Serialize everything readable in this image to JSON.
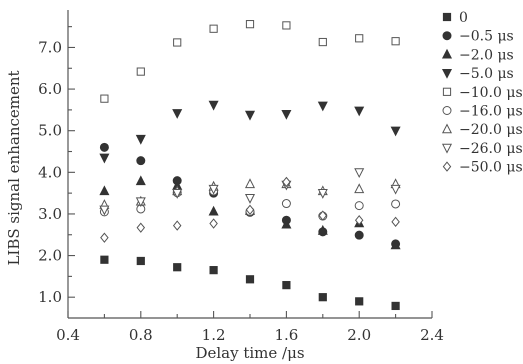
{
  "chart_data": {
    "type": "scatter",
    "title": "",
    "xlabel": "Delay time /μs",
    "ylabel": "LIBS signal enhancement",
    "xlim": [
      0.4,
      2.4
    ],
    "ylim": [
      0.5,
      7.9
    ],
    "xticks": [
      0.4,
      0.8,
      1.2,
      1.6,
      2.0,
      2.4
    ],
    "xtick_labels": [
      "0.4",
      "0.8",
      "1.2",
      "1.6",
      "2.0",
      "2.4"
    ],
    "xminor": [
      0.6,
      1.0,
      1.4,
      1.8,
      2.2
    ],
    "yticks": [
      1.0,
      2.0,
      3.0,
      4.0,
      5.0,
      6.0,
      7.0
    ],
    "ytick_labels": [
      "1.0",
      "2.0",
      "3.0",
      "4.0",
      "5.0",
      "6.0",
      "7.0"
    ],
    "yminor": [
      1.5,
      2.5,
      3.5,
      4.5,
      5.5,
      6.5,
      7.5
    ],
    "grid": false,
    "legend_position": "right",
    "x": [
      0.6,
      0.8,
      1.0,
      1.2,
      1.4,
      1.6,
      1.8,
      2.0,
      2.2
    ],
    "series": [
      {
        "name": "0",
        "marker": "square-filled",
        "values": [
          1.9,
          1.87,
          1.72,
          1.65,
          1.43,
          1.29,
          1.0,
          0.9,
          0.79
        ]
      },
      {
        "name": "−0.5 μs",
        "marker": "circle-filled",
        "values": [
          4.6,
          4.28,
          3.8,
          3.5,
          3.04,
          2.85,
          2.57,
          2.49,
          2.28
        ]
      },
      {
        "name": "−2.0 μs",
        "marker": "triangle-up-filled",
        "values": [
          3.55,
          3.79,
          3.68,
          3.06,
          3.08,
          2.75,
          2.6,
          2.78,
          2.25
        ]
      },
      {
        "name": "−5.0 μs",
        "marker": "triangle-down-filled",
        "values": [
          4.35,
          4.8,
          5.42,
          5.62,
          5.38,
          5.4,
          5.6,
          5.48,
          5.0
        ]
      },
      {
        "name": "−10.0 μs",
        "marker": "square-open",
        "values": [
          5.77,
          6.42,
          7.12,
          7.45,
          7.56,
          7.53,
          7.13,
          7.22,
          7.15
        ]
      },
      {
        "name": "−16.0 μs",
        "marker": "circle-open",
        "values": [
          3.05,
          3.12,
          3.51,
          3.55,
          3.06,
          3.25,
          2.95,
          3.2,
          3.24
        ]
      },
      {
        "name": "−20.0 μs",
        "marker": "triangle-up-open",
        "values": [
          3.22,
          3.3,
          3.55,
          3.66,
          3.72,
          3.72,
          3.55,
          3.6,
          3.72
        ]
      },
      {
        "name": "−26.0 μs",
        "marker": "triangle-down-open",
        "values": [
          3.1,
          3.3,
          3.5,
          3.6,
          3.38,
          3.7,
          3.5,
          4.0,
          3.6
        ]
      },
      {
        "name": "−50.0 μs",
        "marker": "diamond-open",
        "values": [
          2.43,
          2.67,
          2.72,
          2.77,
          3.1,
          3.77,
          2.96,
          2.85,
          2.81
        ]
      }
    ]
  }
}
